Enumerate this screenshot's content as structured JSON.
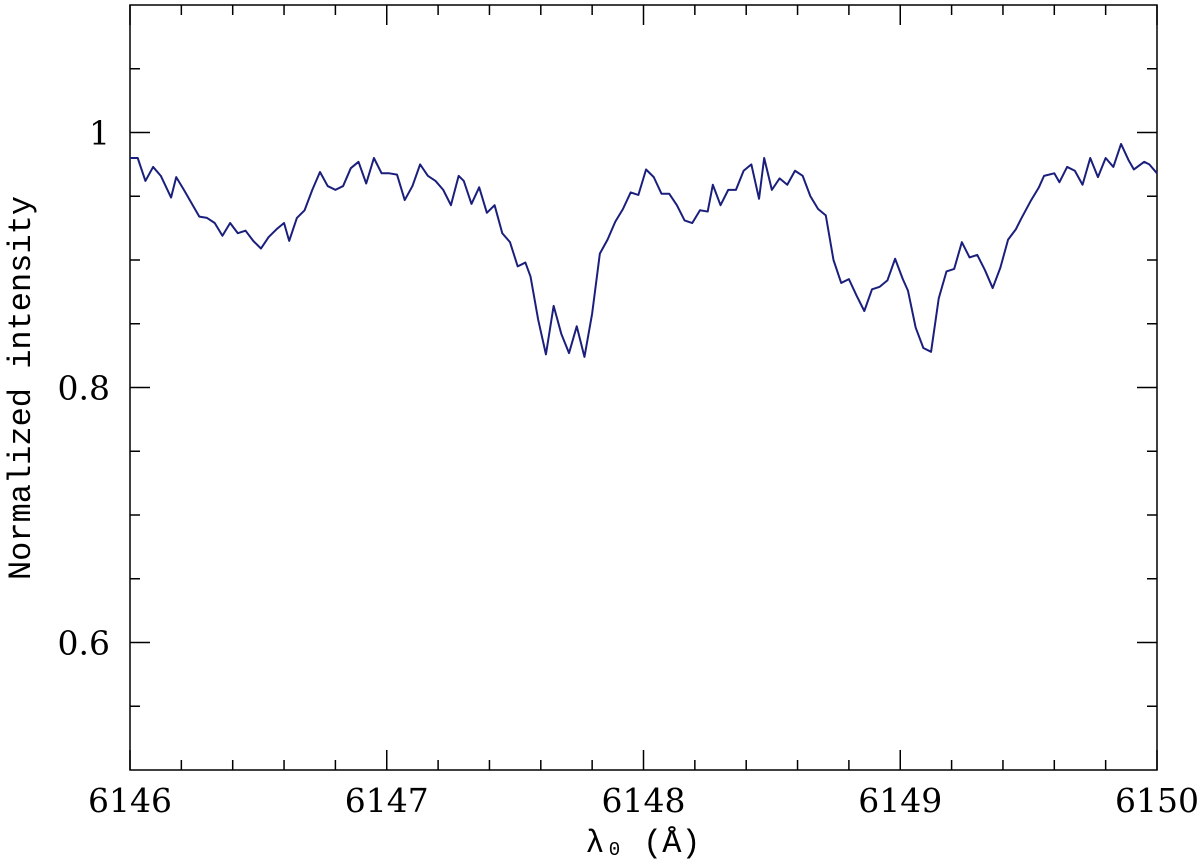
{
  "chart_data": {
    "type": "line",
    "x_label": "λ₀  (Å)",
    "y_label": "Normalized intensity",
    "xlim": [
      6146,
      6150
    ],
    "ylim": [
      0.5,
      1.1
    ],
    "xticks": [
      6146,
      6147,
      6148,
      6149,
      6150
    ],
    "xticks_minor": [
      6146.2,
      6146.4,
      6146.6,
      6146.8,
      6147.2,
      6147.4,
      6147.6,
      6147.8,
      6148.2,
      6148.4,
      6148.6,
      6148.8,
      6149.2,
      6149.4,
      6149.6,
      6149.8
    ],
    "yticks": [
      0.6,
      0.8,
      1
    ],
    "yticks_minor": [
      0.55,
      0.65,
      0.7,
      0.75,
      0.85,
      0.9,
      0.95,
      1.05
    ],
    "series": [
      {
        "color": "#1b1f7c",
        "x": [
          6146.0,
          6146.03,
          6146.06,
          6146.09,
          6146.12,
          6146.16,
          6146.18,
          6146.21,
          6146.25,
          6146.27,
          6146.3,
          6146.33,
          6146.36,
          6146.39,
          6146.42,
          6146.45,
          6146.48,
          6146.51,
          6146.54,
          6146.57,
          6146.6,
          6146.62,
          6146.65,
          6146.68,
          6146.71,
          6146.74,
          6146.77,
          6146.8,
          6146.83,
          6146.86,
          6146.89,
          6146.92,
          6146.95,
          6146.98,
          6147.01,
          6147.04,
          6147.07,
          6147.1,
          6147.13,
          6147.16,
          6147.19,
          6147.22,
          6147.25,
          6147.28,
          6147.3,
          6147.33,
          6147.36,
          6147.39,
          6147.42,
          6147.45,
          6147.48,
          6147.51,
          6147.54,
          6147.56,
          6147.59,
          6147.62,
          6147.65,
          6147.68,
          6147.71,
          6147.74,
          6147.77,
          6147.8,
          6147.83,
          6147.86,
          6147.89,
          6147.92,
          6147.95,
          6147.98,
          6148.01,
          6148.04,
          6148.07,
          6148.1,
          6148.13,
          6148.16,
          6148.19,
          6148.22,
          6148.25,
          6148.27,
          6148.3,
          6148.33,
          6148.36,
          6148.39,
          6148.42,
          6148.45,
          6148.47,
          6148.5,
          6148.53,
          6148.56,
          6148.59,
          6148.62,
          6148.65,
          6148.68,
          6148.71,
          6148.74,
          6148.77,
          6148.8,
          6148.83,
          6148.86,
          6148.89,
          6148.92,
          6148.95,
          6148.98,
          6149.01,
          6149.03,
          6149.06,
          6149.09,
          6149.12,
          6149.15,
          6149.18,
          6149.21,
          6149.24,
          6149.27,
          6149.3,
          6149.33,
          6149.36,
          6149.39,
          6149.42,
          6149.45,
          6149.47,
          6149.51,
          6149.54,
          6149.56,
          6149.6,
          6149.62,
          6149.65,
          6149.68,
          6149.71,
          6149.74,
          6149.77,
          6149.8,
          6149.83,
          6149.86,
          6149.89,
          6149.91,
          6149.95,
          6149.97,
          6150.0
        ],
        "values": [
          0.98,
          0.98,
          0.962,
          0.973,
          0.966,
          0.949,
          0.965,
          0.955,
          0.941,
          0.934,
          0.933,
          0.929,
          0.919,
          0.929,
          0.921,
          0.923,
          0.915,
          0.909,
          0.918,
          0.924,
          0.929,
          0.915,
          0.933,
          0.939,
          0.955,
          0.969,
          0.958,
          0.955,
          0.958,
          0.972,
          0.977,
          0.96,
          0.98,
          0.968,
          0.968,
          0.967,
          0.947,
          0.958,
          0.975,
          0.966,
          0.962,
          0.955,
          0.943,
          0.966,
          0.962,
          0.944,
          0.957,
          0.937,
          0.943,
          0.921,
          0.914,
          0.895,
          0.898,
          0.887,
          0.853,
          0.826,
          0.864,
          0.842,
          0.827,
          0.848,
          0.824,
          0.858,
          0.905,
          0.916,
          0.93,
          0.94,
          0.953,
          0.951,
          0.971,
          0.965,
          0.952,
          0.952,
          0.943,
          0.931,
          0.929,
          0.939,
          0.938,
          0.959,
          0.943,
          0.955,
          0.955,
          0.97,
          0.975,
          0.948,
          0.98,
          0.955,
          0.964,
          0.959,
          0.97,
          0.966,
          0.95,
          0.94,
          0.935,
          0.9,
          0.882,
          0.885,
          0.872,
          0.86,
          0.877,
          0.879,
          0.884,
          0.901,
          0.885,
          0.876,
          0.847,
          0.831,
          0.828,
          0.87,
          0.891,
          0.893,
          0.914,
          0.902,
          0.904,
          0.892,
          0.878,
          0.894,
          0.916,
          0.924,
          0.932,
          0.947,
          0.957,
          0.966,
          0.968,
          0.961,
          0.973,
          0.97,
          0.959,
          0.98,
          0.965,
          0.98,
          0.973,
          0.991,
          0.978,
          0.971,
          0.977,
          0.975,
          0.968
        ]
      }
    ]
  }
}
